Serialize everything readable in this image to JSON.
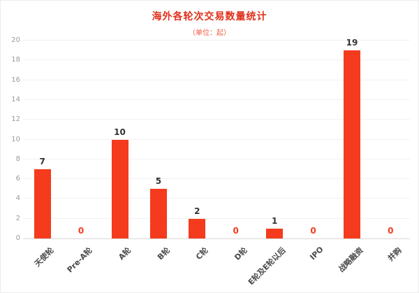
{
  "chart_data": {
    "type": "bar",
    "title": "海外各轮次交易数量统计",
    "subtitle": "（单位：起）",
    "categories": [
      "天使轮",
      "Pre-A轮",
      "A轮",
      "B轮",
      "C轮",
      "D轮",
      "E轮及E轮以后",
      "IPO",
      "战略融资",
      "并购"
    ],
    "values": [
      7,
      0,
      10,
      5,
      2,
      0,
      1,
      0,
      19,
      0
    ],
    "ylim": [
      0,
      20
    ],
    "ytick_step": 2,
    "grid": true,
    "legend": "none",
    "xlabel": "",
    "ylabel": "",
    "colors": {
      "bar": "#f43b1d",
      "title": "#e1301a",
      "subtitle": "#ef5a41",
      "value_label": "#333333",
      "zero_label": "#f43b1d",
      "axis_tick": "#9b9b9b",
      "x_label": "#4a4a4a"
    }
  }
}
